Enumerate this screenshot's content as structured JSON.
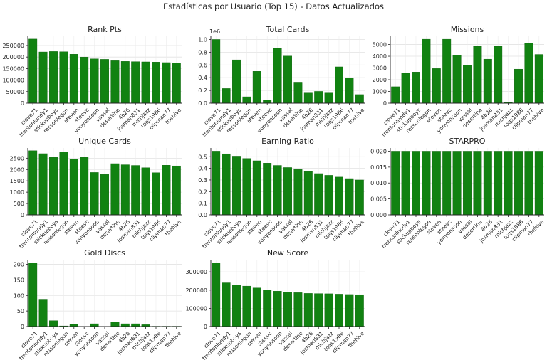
{
  "figure": {
    "title": "Estadísticas por Usuario (Top 15) - Datos Actualizados",
    "bar_color": "#118211",
    "edge_color": "#0b5e0b"
  },
  "chart_data": [
    {
      "type": "bar",
      "title": "Rank Pts",
      "xlabel": "",
      "ylabel": "",
      "categories": [
        "clove71",
        "trentonlundy1",
        "stickupboys",
        "ressonlegon",
        "steven",
        "steevc",
        "yonyonsoon",
        "vassal",
        "desertine",
        "4b26",
        "josman831",
        "michjazz",
        "toqs1986",
        "clipman77",
        "thehive"
      ],
      "values": [
        278000,
        222000,
        224000,
        223000,
        212000,
        200000,
        192000,
        190000,
        184000,
        181000,
        180000,
        179000,
        178000,
        176000,
        175000
      ],
      "ylim": [
        0,
        290000
      ],
      "yticks": [
        0,
        50000,
        100000,
        150000,
        200000,
        250000
      ],
      "ytick_labels": [
        "0",
        "50000",
        "100000",
        "150000",
        "200000",
        "250000"
      ],
      "offset_label": "",
      "grid": true
    },
    {
      "type": "bar",
      "title": "Total Cards",
      "xlabel": "",
      "ylabel": "",
      "categories": [
        "clove71",
        "trentonlundy1",
        "stickupboys",
        "ressonlegon",
        "steven",
        "steevc",
        "yonyonsoon",
        "vassal",
        "desertine",
        "4b26",
        "josman831",
        "michjazz",
        "toqs1986",
        "clipman77",
        "thehive"
      ],
      "values": [
        1000000,
        230000,
        680000,
        100000,
        500000,
        50000,
        860000,
        740000,
        330000,
        160000,
        185000,
        160000,
        570000,
        400000,
        135000
      ],
      "ylim": [
        0,
        1050000
      ],
      "yticks": [
        0,
        200000,
        400000,
        600000,
        800000,
        1000000
      ],
      "ytick_labels": [
        "0.0",
        "0.2",
        "0.4",
        "0.6",
        "0.8",
        "1.0"
      ],
      "offset_label": "1e6",
      "grid": true
    },
    {
      "type": "bar",
      "title": "Missions",
      "xlabel": "",
      "ylabel": "",
      "categories": [
        "clove71",
        "trentonlundy1",
        "stickupboys",
        "ressonlegon",
        "steven",
        "steevc",
        "yonyonsoon",
        "vassal",
        "desertine",
        "4b26",
        "josman831",
        "michjazz",
        "toqs1986",
        "clipman77",
        "thehive"
      ],
      "values": [
        1400,
        2550,
        2650,
        5450,
        2950,
        5450,
        4100,
        3250,
        4850,
        3750,
        4850,
        80,
        2900,
        5100,
        4150
      ],
      "ylim": [
        0,
        5700
      ],
      "yticks": [
        0,
        1000,
        2000,
        3000,
        4000,
        5000
      ],
      "ytick_labels": [
        "0",
        "1000",
        "2000",
        "3000",
        "4000",
        "5000"
      ],
      "offset_label": "",
      "grid": true
    },
    {
      "type": "bar",
      "title": "Unique Cards",
      "xlabel": "",
      "ylabel": "",
      "categories": [
        "clove71",
        "trentonlundy1",
        "stickupboys",
        "ressonlegon",
        "steven",
        "steevc",
        "yonyonsoon",
        "vassal",
        "desertine",
        "4b26",
        "josman831",
        "michjazz",
        "toqs1986",
        "clipman77",
        "thehive"
      ],
      "values": [
        2830,
        2700,
        2540,
        2780,
        2470,
        2540,
        1870,
        1780,
        2260,
        2210,
        2180,
        2080,
        1860,
        2190,
        2160
      ],
      "ylim": [
        0,
        2950
      ],
      "yticks": [
        0,
        500,
        1000,
        1500,
        2000,
        2500
      ],
      "ytick_labels": [
        "0",
        "500",
        "1000",
        "1500",
        "2000",
        "2500"
      ],
      "offset_label": "",
      "grid": true
    },
    {
      "type": "bar",
      "title": "Earning Ratio",
      "xlabel": "",
      "ylabel": "",
      "categories": [
        "clove71",
        "trentonlundy1",
        "stickupboys",
        "ressonlegon",
        "steven",
        "steevc",
        "yonyonsoon",
        "vassal",
        "desertine",
        "4b26",
        "josman831",
        "michjazz",
        "toqs1986",
        "clipman77",
        "thehive"
      ],
      "values": [
        0.548,
        0.525,
        0.505,
        0.485,
        0.465,
        0.445,
        0.425,
        0.407,
        0.39,
        0.372,
        0.355,
        0.34,
        0.325,
        0.312,
        0.3
      ],
      "ylim": [
        0,
        0.575
      ],
      "yticks": [
        0,
        0.1,
        0.2,
        0.3,
        0.4,
        0.5
      ],
      "ytick_labels": [
        "0.0",
        "0.1",
        "0.2",
        "0.3",
        "0.4",
        "0.5"
      ],
      "offset_label": "",
      "grid": true
    },
    {
      "type": "bar",
      "title": "STARPRO",
      "xlabel": "",
      "ylabel": "",
      "categories": [
        "clove71",
        "trentonlundy1",
        "stickupboys",
        "ressonlegon",
        "steven",
        "steevc",
        "yonyonsoon",
        "vassal",
        "desertine",
        "4b26",
        "josman831",
        "michjazz",
        "toqs1986",
        "clipman77",
        "thehive"
      ],
      "values": [
        0.02,
        0.02,
        0.02,
        0.02,
        0.02,
        0.02,
        0.02,
        0.02,
        0.02,
        0.02,
        0.02,
        0.02,
        0.02,
        0.02,
        0.02
      ],
      "ylim": [
        0,
        0.021
      ],
      "yticks": [
        0,
        0.005,
        0.01,
        0.015,
        0.02
      ],
      "ytick_labels": [
        "0.000",
        "0.005",
        "0.010",
        "0.015",
        "0.020"
      ],
      "offset_label": "",
      "grid": true
    },
    {
      "type": "bar",
      "title": "Gold Discs",
      "xlabel": "",
      "ylabel": "",
      "categories": [
        "clove71",
        "trentonlundy1",
        "stickupboys",
        "ressonlegon",
        "steven",
        "steevc",
        "yonyonsoon",
        "vassal",
        "desertine",
        "4b26",
        "josman831",
        "michjazz",
        "toqs1986",
        "clipman77",
        "thehive"
      ],
      "values": [
        205,
        88,
        19,
        2,
        7,
        0,
        9,
        0,
        15,
        9,
        9,
        6,
        1,
        1,
        1
      ],
      "ylim": [
        0,
        215
      ],
      "yticks": [
        0,
        50,
        100,
        150,
        200
      ],
      "ytick_labels": [
        "0",
        "50",
        "100",
        "150",
        "200"
      ],
      "offset_label": "",
      "grid": true
    },
    {
      "type": "bar",
      "title": "New Score",
      "xlabel": "",
      "ylabel": "",
      "categories": [
        "clove71",
        "trentonlundy1",
        "stickupboys",
        "ressonlegon",
        "steven",
        "steevc",
        "yonyonsoon",
        "vassal",
        "desertine",
        "4b26",
        "josman831",
        "michjazz",
        "toqs1986",
        "clipman77",
        "thehive"
      ],
      "values": [
        350000,
        240000,
        228000,
        222000,
        212000,
        200000,
        194000,
        190000,
        186000,
        182000,
        181000,
        180000,
        178000,
        176000,
        175000
      ],
      "ylim": [
        0,
        367000
      ],
      "yticks": [
        0,
        100000,
        200000,
        300000
      ],
      "ytick_labels": [
        "0",
        "100000",
        "200000",
        "300000"
      ],
      "offset_label": "",
      "grid": true
    }
  ]
}
